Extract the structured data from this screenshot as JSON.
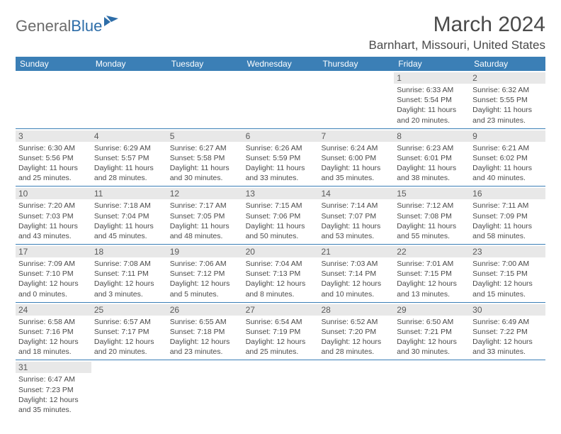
{
  "logo": {
    "general": "General",
    "blue": "Blue"
  },
  "title": "March 2024",
  "location": "Barnhart, Missouri, United States",
  "colors": {
    "header_bg": "#3b7fb6",
    "header_text": "#ffffff",
    "daynum_bg": "#e8e8e8",
    "text": "#4a4a4a",
    "rule": "#3b7fb6",
    "logo_gray": "#6b6b6b",
    "logo_blue": "#2d6da8"
  },
  "weekdays": [
    "Sunday",
    "Monday",
    "Tuesday",
    "Wednesday",
    "Thursday",
    "Friday",
    "Saturday"
  ],
  "weeks": [
    [
      {
        "n": "",
        "sr": "",
        "ss": "",
        "dl": ""
      },
      {
        "n": "",
        "sr": "",
        "ss": "",
        "dl": ""
      },
      {
        "n": "",
        "sr": "",
        "ss": "",
        "dl": ""
      },
      {
        "n": "",
        "sr": "",
        "ss": "",
        "dl": ""
      },
      {
        "n": "",
        "sr": "",
        "ss": "",
        "dl": ""
      },
      {
        "n": "1",
        "sr": "Sunrise: 6:33 AM",
        "ss": "Sunset: 5:54 PM",
        "dl": "Daylight: 11 hours and 20 minutes."
      },
      {
        "n": "2",
        "sr": "Sunrise: 6:32 AM",
        "ss": "Sunset: 5:55 PM",
        "dl": "Daylight: 11 hours and 23 minutes."
      }
    ],
    [
      {
        "n": "3",
        "sr": "Sunrise: 6:30 AM",
        "ss": "Sunset: 5:56 PM",
        "dl": "Daylight: 11 hours and 25 minutes."
      },
      {
        "n": "4",
        "sr": "Sunrise: 6:29 AM",
        "ss": "Sunset: 5:57 PM",
        "dl": "Daylight: 11 hours and 28 minutes."
      },
      {
        "n": "5",
        "sr": "Sunrise: 6:27 AM",
        "ss": "Sunset: 5:58 PM",
        "dl": "Daylight: 11 hours and 30 minutes."
      },
      {
        "n": "6",
        "sr": "Sunrise: 6:26 AM",
        "ss": "Sunset: 5:59 PM",
        "dl": "Daylight: 11 hours and 33 minutes."
      },
      {
        "n": "7",
        "sr": "Sunrise: 6:24 AM",
        "ss": "Sunset: 6:00 PM",
        "dl": "Daylight: 11 hours and 35 minutes."
      },
      {
        "n": "8",
        "sr": "Sunrise: 6:23 AM",
        "ss": "Sunset: 6:01 PM",
        "dl": "Daylight: 11 hours and 38 minutes."
      },
      {
        "n": "9",
        "sr": "Sunrise: 6:21 AM",
        "ss": "Sunset: 6:02 PM",
        "dl": "Daylight: 11 hours and 40 minutes."
      }
    ],
    [
      {
        "n": "10",
        "sr": "Sunrise: 7:20 AM",
        "ss": "Sunset: 7:03 PM",
        "dl": "Daylight: 11 hours and 43 minutes."
      },
      {
        "n": "11",
        "sr": "Sunrise: 7:18 AM",
        "ss": "Sunset: 7:04 PM",
        "dl": "Daylight: 11 hours and 45 minutes."
      },
      {
        "n": "12",
        "sr": "Sunrise: 7:17 AM",
        "ss": "Sunset: 7:05 PM",
        "dl": "Daylight: 11 hours and 48 minutes."
      },
      {
        "n": "13",
        "sr": "Sunrise: 7:15 AM",
        "ss": "Sunset: 7:06 PM",
        "dl": "Daylight: 11 hours and 50 minutes."
      },
      {
        "n": "14",
        "sr": "Sunrise: 7:14 AM",
        "ss": "Sunset: 7:07 PM",
        "dl": "Daylight: 11 hours and 53 minutes."
      },
      {
        "n": "15",
        "sr": "Sunrise: 7:12 AM",
        "ss": "Sunset: 7:08 PM",
        "dl": "Daylight: 11 hours and 55 minutes."
      },
      {
        "n": "16",
        "sr": "Sunrise: 7:11 AM",
        "ss": "Sunset: 7:09 PM",
        "dl": "Daylight: 11 hours and 58 minutes."
      }
    ],
    [
      {
        "n": "17",
        "sr": "Sunrise: 7:09 AM",
        "ss": "Sunset: 7:10 PM",
        "dl": "Daylight: 12 hours and 0 minutes."
      },
      {
        "n": "18",
        "sr": "Sunrise: 7:08 AM",
        "ss": "Sunset: 7:11 PM",
        "dl": "Daylight: 12 hours and 3 minutes."
      },
      {
        "n": "19",
        "sr": "Sunrise: 7:06 AM",
        "ss": "Sunset: 7:12 PM",
        "dl": "Daylight: 12 hours and 5 minutes."
      },
      {
        "n": "20",
        "sr": "Sunrise: 7:04 AM",
        "ss": "Sunset: 7:13 PM",
        "dl": "Daylight: 12 hours and 8 minutes."
      },
      {
        "n": "21",
        "sr": "Sunrise: 7:03 AM",
        "ss": "Sunset: 7:14 PM",
        "dl": "Daylight: 12 hours and 10 minutes."
      },
      {
        "n": "22",
        "sr": "Sunrise: 7:01 AM",
        "ss": "Sunset: 7:15 PM",
        "dl": "Daylight: 12 hours and 13 minutes."
      },
      {
        "n": "23",
        "sr": "Sunrise: 7:00 AM",
        "ss": "Sunset: 7:15 PM",
        "dl": "Daylight: 12 hours and 15 minutes."
      }
    ],
    [
      {
        "n": "24",
        "sr": "Sunrise: 6:58 AM",
        "ss": "Sunset: 7:16 PM",
        "dl": "Daylight: 12 hours and 18 minutes."
      },
      {
        "n": "25",
        "sr": "Sunrise: 6:57 AM",
        "ss": "Sunset: 7:17 PM",
        "dl": "Daylight: 12 hours and 20 minutes."
      },
      {
        "n": "26",
        "sr": "Sunrise: 6:55 AM",
        "ss": "Sunset: 7:18 PM",
        "dl": "Daylight: 12 hours and 23 minutes."
      },
      {
        "n": "27",
        "sr": "Sunrise: 6:54 AM",
        "ss": "Sunset: 7:19 PM",
        "dl": "Daylight: 12 hours and 25 minutes."
      },
      {
        "n": "28",
        "sr": "Sunrise: 6:52 AM",
        "ss": "Sunset: 7:20 PM",
        "dl": "Daylight: 12 hours and 28 minutes."
      },
      {
        "n": "29",
        "sr": "Sunrise: 6:50 AM",
        "ss": "Sunset: 7:21 PM",
        "dl": "Daylight: 12 hours and 30 minutes."
      },
      {
        "n": "30",
        "sr": "Sunrise: 6:49 AM",
        "ss": "Sunset: 7:22 PM",
        "dl": "Daylight: 12 hours and 33 minutes."
      }
    ],
    [
      {
        "n": "31",
        "sr": "Sunrise: 6:47 AM",
        "ss": "Sunset: 7:23 PM",
        "dl": "Daylight: 12 hours and 35 minutes."
      },
      {
        "n": "",
        "sr": "",
        "ss": "",
        "dl": ""
      },
      {
        "n": "",
        "sr": "",
        "ss": "",
        "dl": ""
      },
      {
        "n": "",
        "sr": "",
        "ss": "",
        "dl": ""
      },
      {
        "n": "",
        "sr": "",
        "ss": "",
        "dl": ""
      },
      {
        "n": "",
        "sr": "",
        "ss": "",
        "dl": ""
      },
      {
        "n": "",
        "sr": "",
        "ss": "",
        "dl": ""
      }
    ]
  ]
}
